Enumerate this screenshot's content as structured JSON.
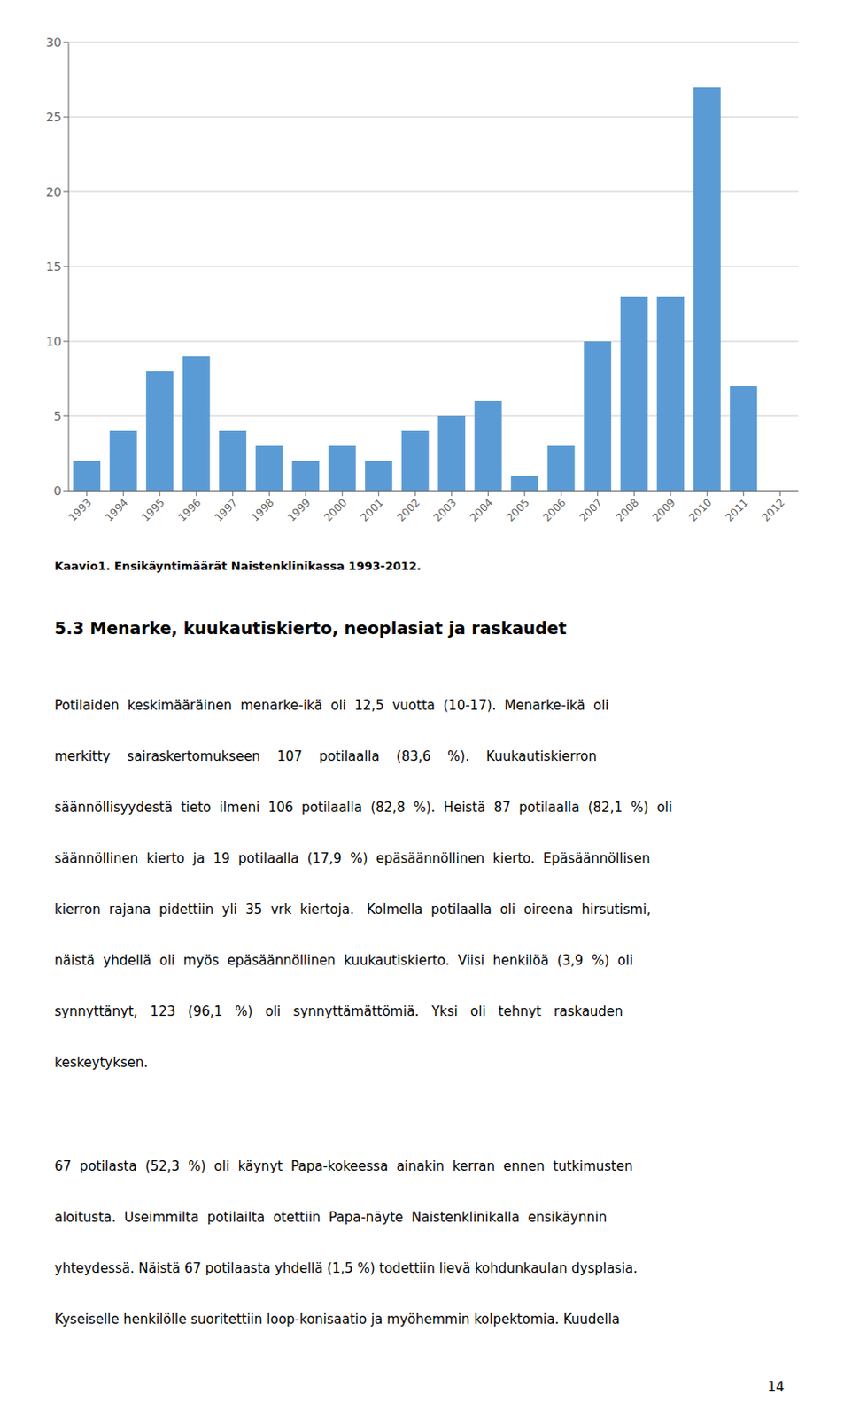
{
  "chart_data": {
    "type": "bar",
    "title": "Kaavio1. Ensikäyntimäärät Naistenklinikassa 1993-2012.",
    "categories": [
      "1993",
      "1994",
      "1995",
      "1996",
      "1997",
      "1998",
      "1999",
      "2000",
      "2001",
      "2002",
      "2003",
      "2004",
      "2005",
      "2006",
      "2007",
      "2008",
      "2009",
      "2010",
      "2011",
      "2012"
    ],
    "values": [
      2,
      4,
      8,
      9,
      4,
      3,
      2,
      3,
      2,
      4,
      5,
      6,
      1,
      3,
      10,
      13,
      13,
      27,
      7,
      0
    ],
    "color": "#5B9BD5",
    "ylim": [
      0,
      30
    ],
    "yticks": [
      0,
      5,
      10,
      15,
      20,
      25,
      30
    ],
    "grid": true,
    "annotations": [
      "5.3 Menarke, kuukautiskierto, neoplasiat ja raskaudet",
      "Potilaiden  keskimääräinen  menarke-ikä  oli  12,5  vuotta  (10-17).  Menarke-ikä  oli",
      "merkitty    sairaskertomukseen    107    potilaalla    (83,6    %).    Kuukautiskierron",
      "säännöllisyydestä  tieto  ilmeni  106  potilaalla  (82,8  %).  Heistä  87  potilaalla  (82,1  %)  oli",
      "säännöllinen  kierto  ja  19  potilaalla  (17,9  %)  epäsäännöllinen  kierto.  Epäsäännöllisen",
      "kierron  rajana  pidettiin  yli  35  vrk  kiertoja.   Kolmella  potilaalla  oli  oireena  hirsutismi,",
      "näistä  yhdellä  oli  myös  epäsäännöllinen  kuukautiskierto.  Viisi  henkilöä  (3,9  %)  oli",
      "synnyttänyt,   123   (96,1   %)   oli   synnyttämättömiä.   Yksi   oli   tehnyt   raskauden",
      "keskeytyksen.",
      "67  potilasta  (52,3  %)  oli  käynyt  Papa-kokeessa  ainakin  kerran  ennen  tutkimusten",
      "aloitusta.  Useimmilta  potilailta  otettiin  Papa-näyte  Naistenklinikalla  ensikäynnin",
      "yhteydessä. Näistä 67 potilaasta yhdellä (1,5 %) todettiin lievä kohdunkaulan dysplasia.",
      "Kyseiselle henkilölle suoritettiin loop-konisaatio ja myöhemmin kolpektomia. Kuudella",
      "14"
    ]
  }
}
